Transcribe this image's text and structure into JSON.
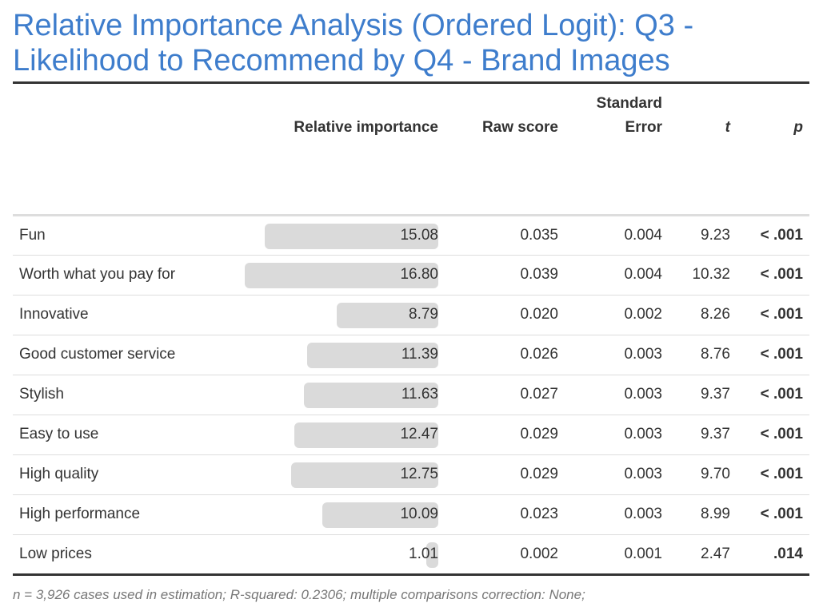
{
  "title": "Relative Importance Analysis (Ordered Logit): Q3 - Likelihood to Recommend by Q4 - Brand Images",
  "columns": {
    "label": "",
    "relative_importance": "Relative importance",
    "raw_score": "Raw score",
    "std_error_line1": "Standard",
    "std_error_line2": "Error",
    "t": "t",
    "p": "p"
  },
  "bar_color": "#dadada",
  "title_color": "#3e7dcc",
  "bar_max": 16.8,
  "rows": [
    {
      "label": "Fun",
      "importance": "15.08",
      "raw": "0.035",
      "se": "0.004",
      "t": "9.23",
      "p": "< .001"
    },
    {
      "label": "Worth what you pay for",
      "importance": "16.80",
      "raw": "0.039",
      "se": "0.004",
      "t": "10.32",
      "p": "< .001"
    },
    {
      "label": "Innovative",
      "importance": "8.79",
      "raw": "0.020",
      "se": "0.002",
      "t": "8.26",
      "p": "< .001"
    },
    {
      "label": "Good customer service",
      "importance": "11.39",
      "raw": "0.026",
      "se": "0.003",
      "t": "8.76",
      "p": "< .001"
    },
    {
      "label": "Stylish",
      "importance": "11.63",
      "raw": "0.027",
      "se": "0.003",
      "t": "9.37",
      "p": "< .001"
    },
    {
      "label": "Easy to use",
      "importance": "12.47",
      "raw": "0.029",
      "se": "0.003",
      "t": "9.37",
      "p": "< .001"
    },
    {
      "label": "High quality",
      "importance": "12.75",
      "raw": "0.029",
      "se": "0.003",
      "t": "9.70",
      "p": "< .001"
    },
    {
      "label": "High performance",
      "importance": "10.09",
      "raw": "0.023",
      "se": "0.003",
      "t": "8.99",
      "p": "< .001"
    },
    {
      "label": "Low prices",
      "importance": "1.01",
      "raw": "0.002",
      "se": "0.001",
      "t": "2.47",
      "p": ".014"
    }
  ],
  "footnote": "n = 3,926 cases used in estimation; R-squared: 0.2306; multiple comparisons correction: None;"
}
